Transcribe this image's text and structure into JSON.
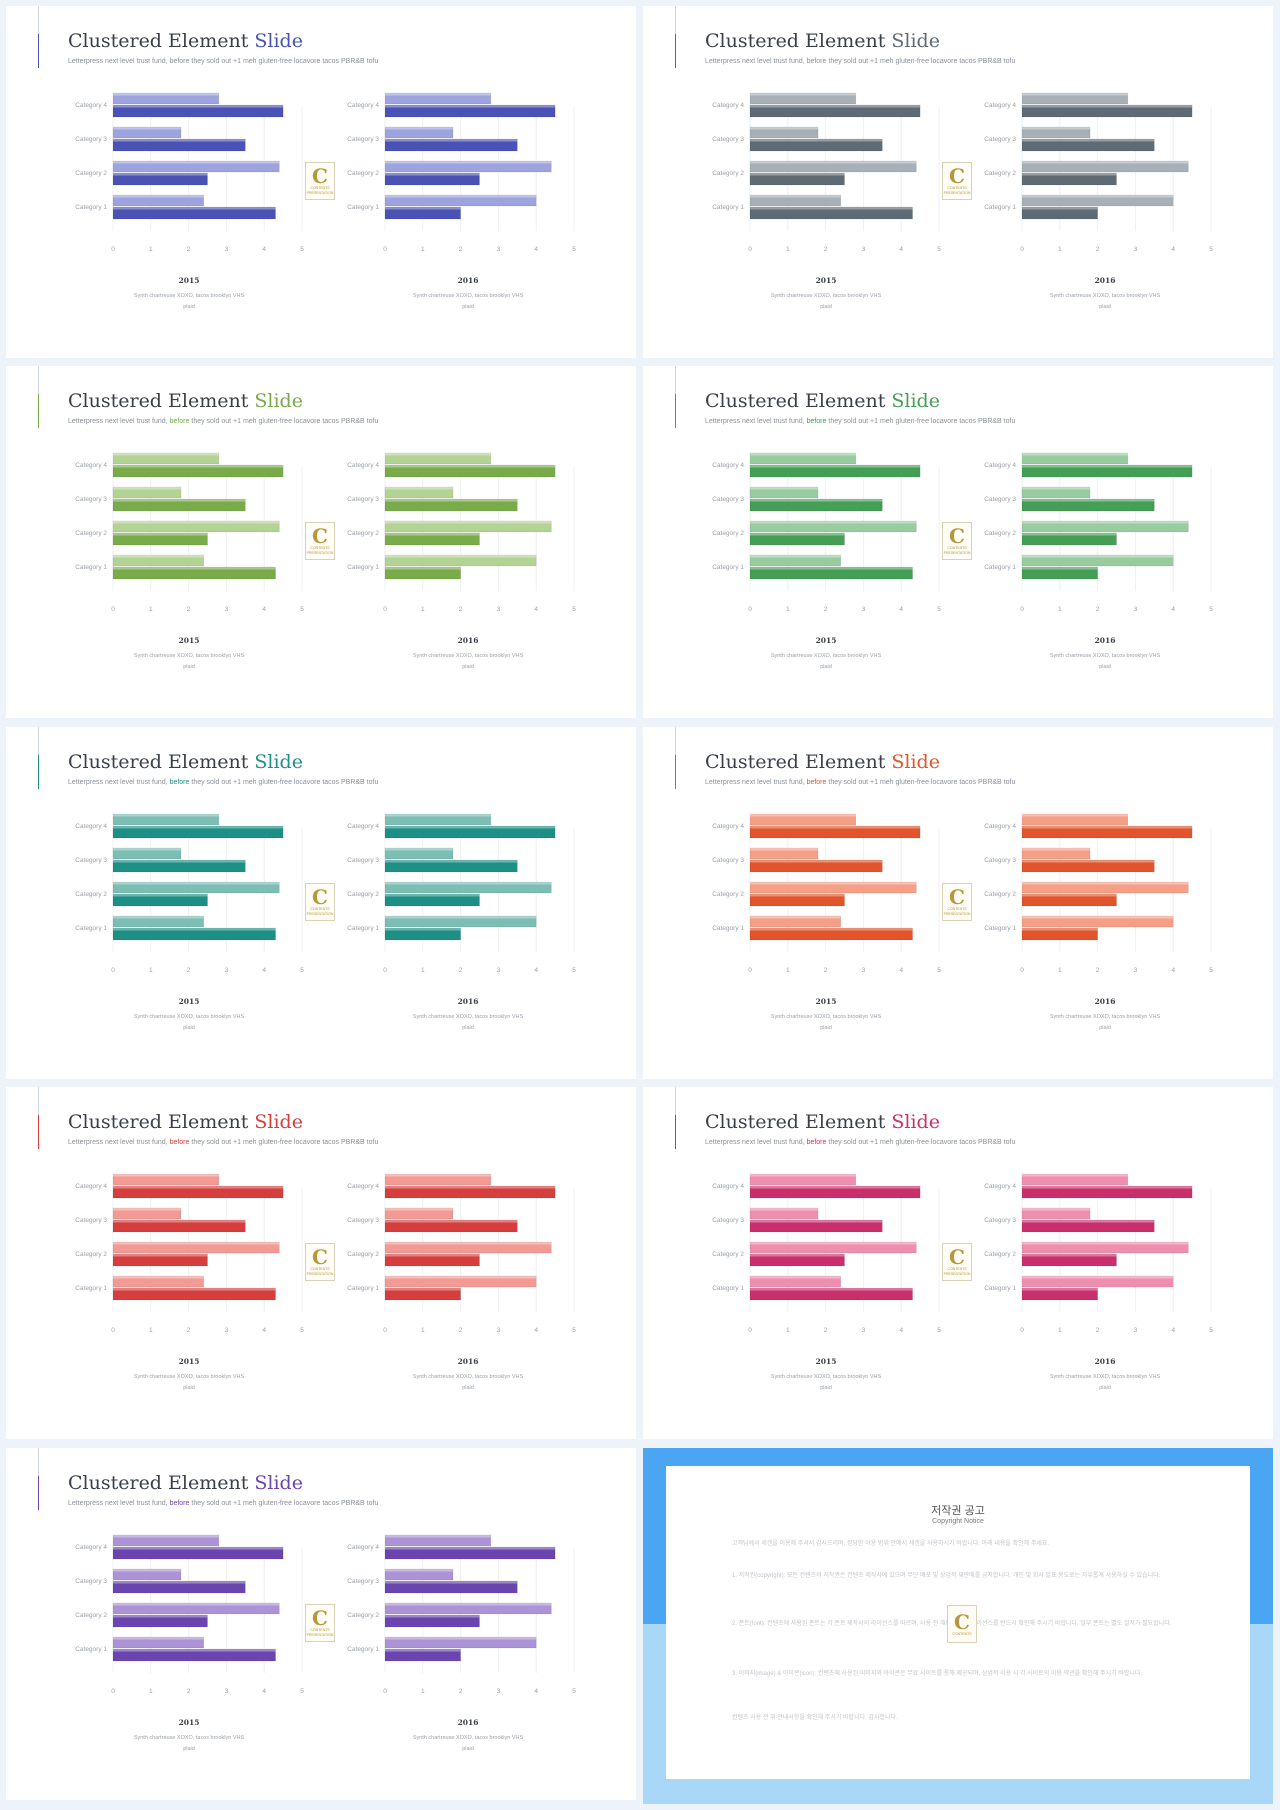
{
  "slide_text": {
    "title_main": "Clustered Element",
    "title_accent": "Slide",
    "subtitle_pre": "Letterpress next level trust fund,",
    "subtitle_mid": "before",
    "subtitle_post": "they sold out +1 meh gluten-free locavore tacos PBR&B tofu",
    "caption_line1": "Synth chartreuse XOXO, tacos brooklyn VHS",
    "caption_line2": "plaid",
    "logo_letter": "C",
    "logo_text": "CONTENTS",
    "logo_subtext": "PRESENTATION"
  },
  "slides": [
    {
      "accent": "#4a53b5",
      "light": "#9da3de"
    },
    {
      "accent": "#5e6b75",
      "light": "#a7b0b7"
    },
    {
      "accent": "#7aab4b",
      "light": "#b3d394"
    },
    {
      "accent": "#449e56",
      "light": "#98cc9f"
    },
    {
      "accent": "#1e8f85",
      "light": "#7cbdb4"
    },
    {
      "accent": "#e0552b",
      "light": "#f5a086"
    },
    {
      "accent": "#d63e3e",
      "light": "#f39a95"
    },
    {
      "accent": "#c9306b",
      "light": "#ef8fb0"
    },
    {
      "accent": "#6a45b0",
      "light": "#ab93d6"
    }
  ],
  "chart_data": [
    {
      "type": "bar",
      "orientation": "horizontal",
      "title": "2015",
      "categories": [
        "Category 1",
        "Category 2",
        "Category 3",
        "Category 4"
      ],
      "series": [
        {
          "values": [
            2.4,
            4.4,
            1.8,
            2.8
          ]
        },
        {
          "values": [
            4.3,
            2.5,
            3.5,
            4.5
          ]
        }
      ],
      "xlim": [
        0,
        5
      ],
      "x_ticks": [
        "0",
        "1",
        "2",
        "3",
        "4",
        "5"
      ],
      "grid": true
    },
    {
      "type": "bar",
      "orientation": "horizontal",
      "title": "2016",
      "categories": [
        "Category 1",
        "Category 2",
        "Category 3",
        "Category 4"
      ],
      "series": [
        {
          "values": [
            4.0,
            4.4,
            1.8,
            2.8
          ]
        },
        {
          "values": [
            2.0,
            2.5,
            3.5,
            4.5
          ]
        }
      ],
      "xlim": [
        0,
        5
      ],
      "x_ticks": [
        "0",
        "1",
        "2",
        "3",
        "4",
        "5"
      ],
      "grid": true
    }
  ],
  "notice": {
    "title": "저작권 공고",
    "subtitle": "Copyright Notice",
    "para1": "고객님께서 세겐을 이용해 주셔서 감사드리며, 정당한 이용 범위 안에서 세겐을 사용하시기 바랍니다. 아래 내용을 확인해 주세요.",
    "para2": "1. 저작권(copyright): 모든 컨텐츠의 저작권은 컨텐츠 제작사에 있으며 무단 배포 및 상업적 재판매를 금지합니다. 개인 및 회사 발표 용도로는 자유롭게 사용하실 수 있습니다.",
    "para3": "2. 폰트(font): 컨텐츠에 사용된 폰트는 각 폰트 제작사의 라이선스를 따르며, 사용 전 해당 폰트의 라이선스를 반드시 확인해 주시기 바랍니다. 일부 폰트는 별도 설치가 필요합니다.",
    "para4": "3. 이미지(image) & 아이콘(icon): 컨텐츠에 사용된 이미지와 아이콘은 무료 사이트를 통해 제공되며, 상업적 이용 시 각 사이트의 이용 약관을 확인해 주시기 바랍니다.",
    "para5": "컨텐츠 사용 전 위 안내사항을 확인해 주시기 바랍니다. 감사합니다."
  }
}
